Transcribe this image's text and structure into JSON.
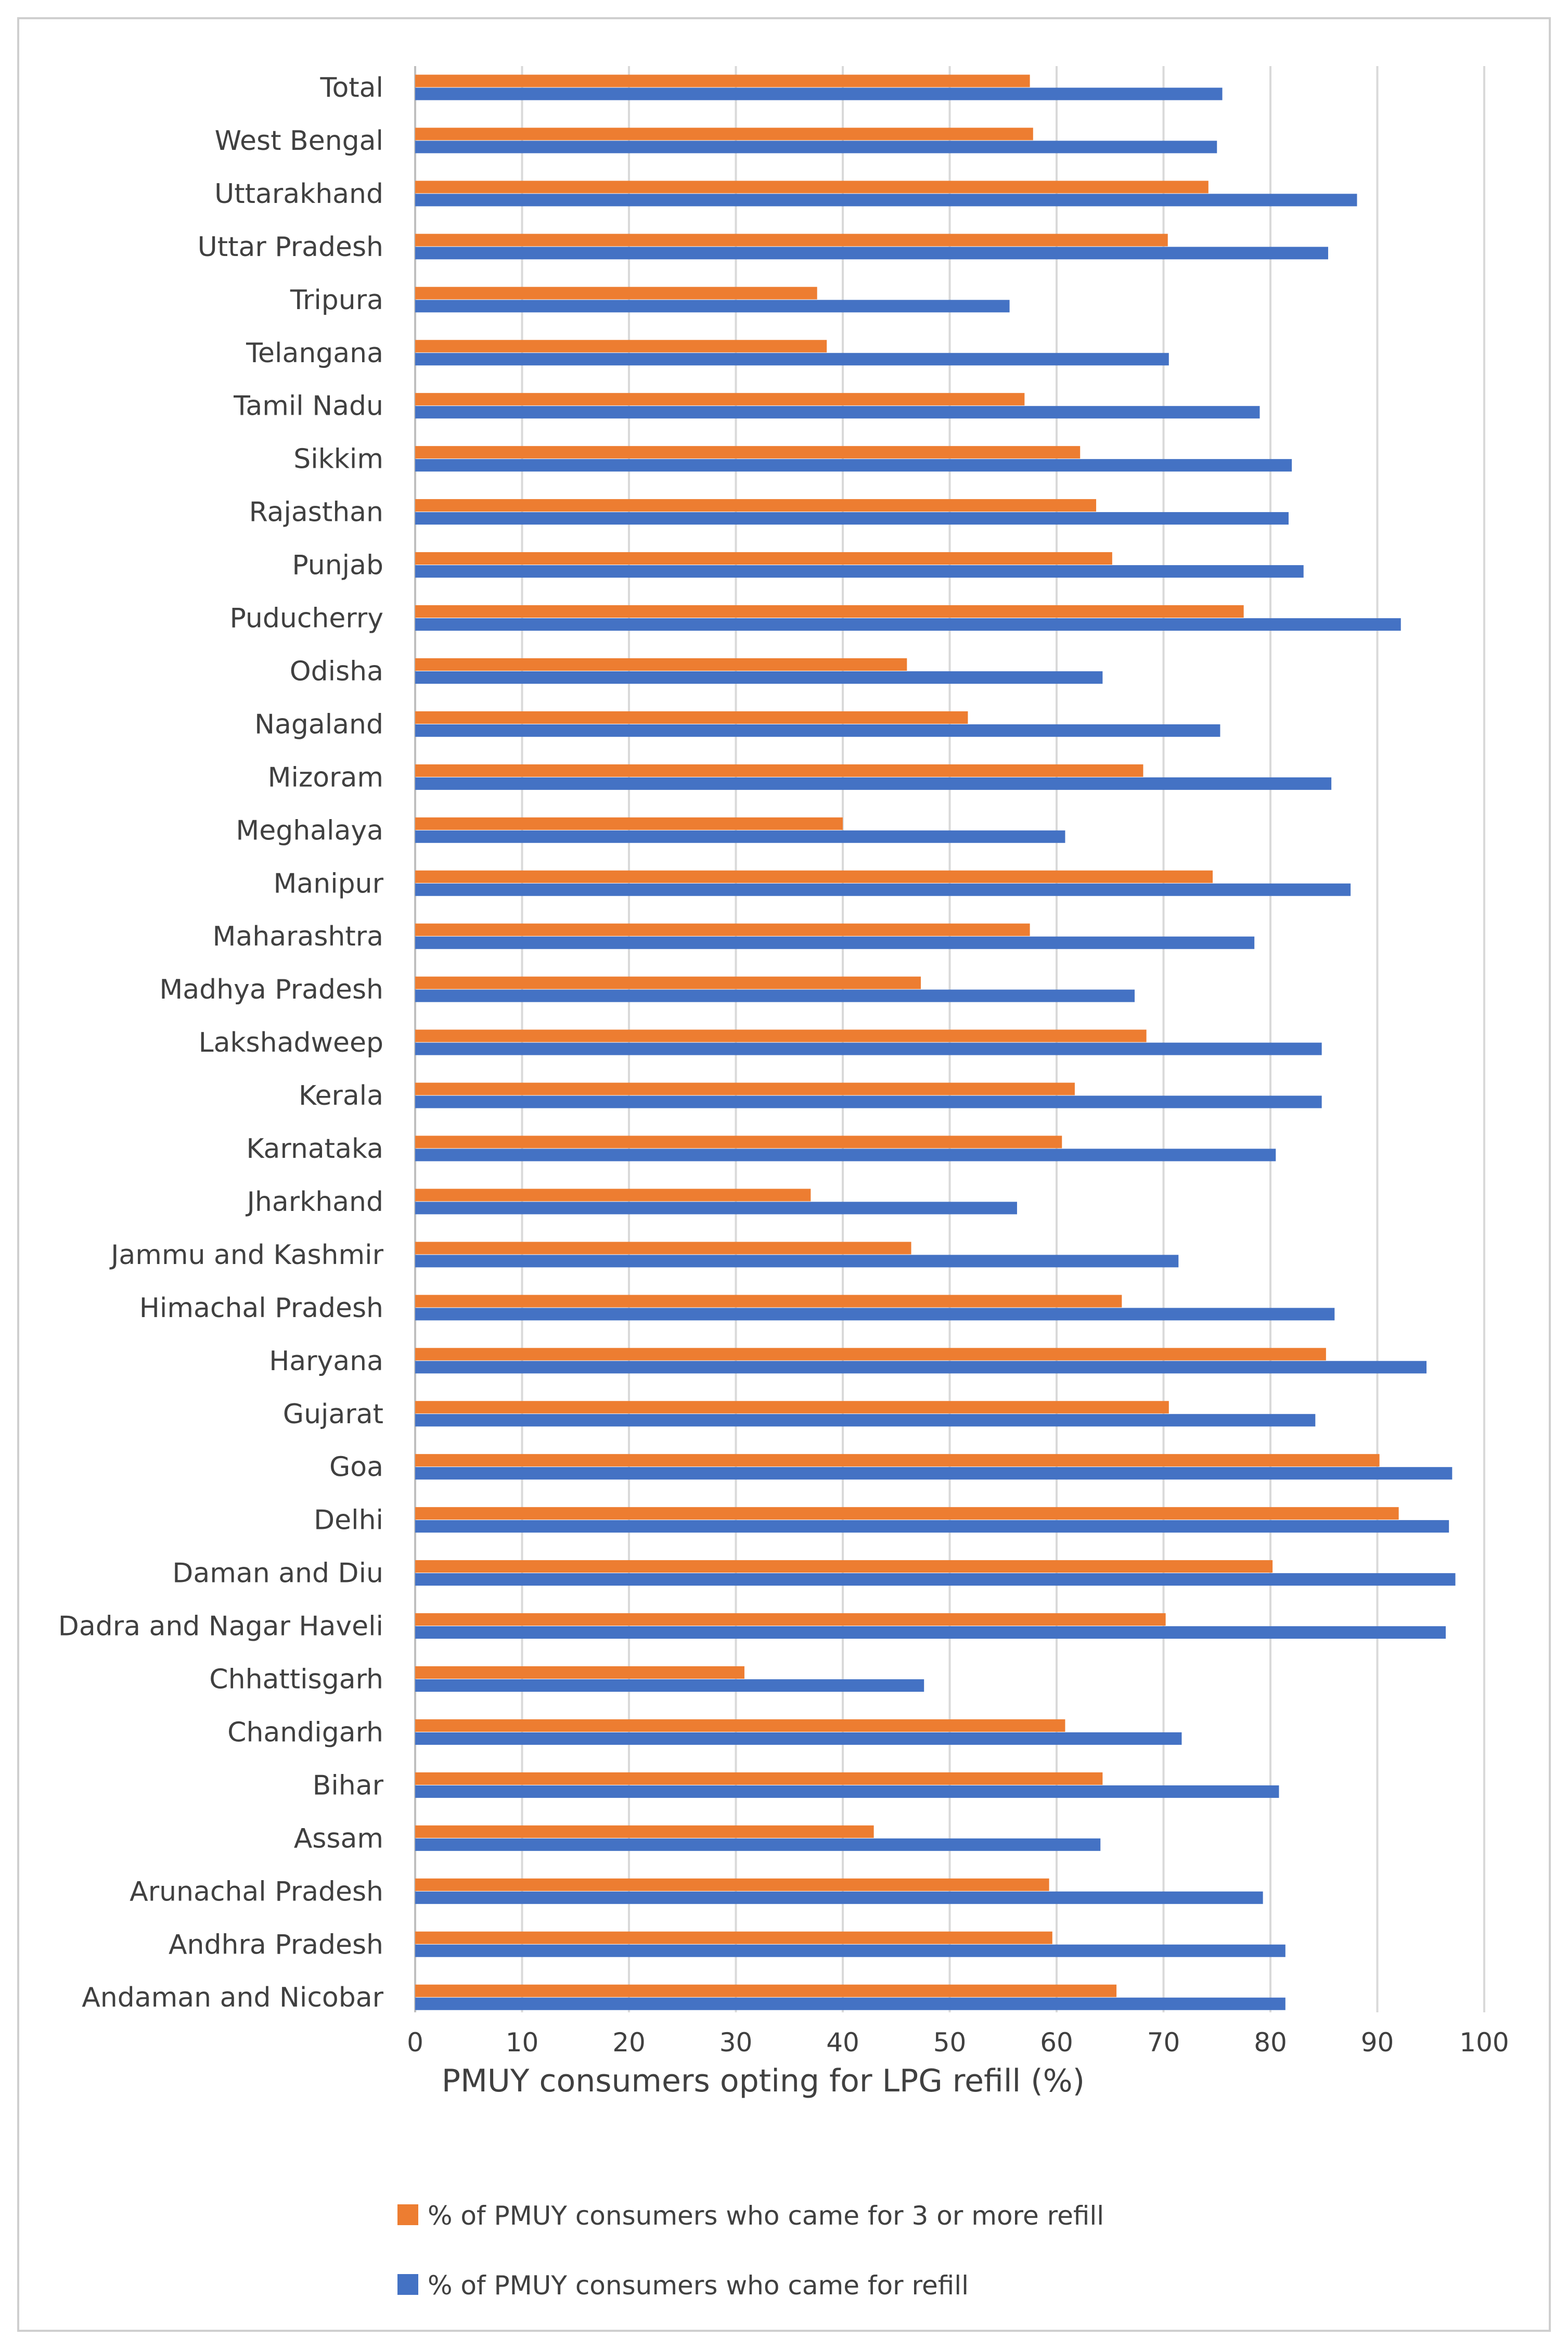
{
  "chart_data": {
    "type": "bar",
    "orientation": "horizontal",
    "title": "",
    "xlabel": "PMUY consumers opting for LPG refill (%)",
    "ylabel": "",
    "xlim": [
      0,
      100
    ],
    "xticks": [
      0,
      10,
      20,
      30,
      40,
      50,
      60,
      70,
      80,
      90,
      100
    ],
    "grid": true,
    "legend_position": "bottom",
    "categories": [
      "Total",
      "West Bengal",
      "Uttarakhand",
      "Uttar Pradesh",
      "Tripura",
      "Telangana",
      "Tamil Nadu",
      "Sikkim",
      "Rajasthan",
      "Punjab",
      "Puducherry",
      "Odisha",
      "Nagaland",
      "Mizoram",
      "Meghalaya",
      "Manipur",
      "Maharashtra",
      "Madhya Pradesh",
      "Lakshadweep",
      "Kerala",
      "Karnataka",
      "Jharkhand",
      "Jammu and Kashmir",
      "Himachal Pradesh",
      "Haryana",
      "Gujarat",
      "Goa",
      "Delhi",
      "Daman and Diu",
      "Dadra and Nagar Haveli",
      "Chhattisgarh",
      "Chandigarh",
      "Bihar",
      "Assam",
      "Arunachal Pradesh",
      "Andhra Pradesh",
      "Andaman and Nicobar"
    ],
    "series": [
      {
        "name": "% of PMUY consumers who came for 3 or more refill",
        "color": "#ED7D31",
        "values": [
          57.5,
          57.8,
          74.2,
          70.4,
          37.6,
          38.5,
          57.0,
          62.2,
          63.7,
          65.2,
          77.5,
          46.0,
          51.7,
          68.1,
          40.0,
          74.6,
          57.5,
          47.3,
          68.4,
          61.7,
          60.5,
          37.0,
          46.4,
          66.1,
          85.2,
          70.5,
          90.2,
          92.0,
          80.2,
          70.2,
          30.8,
          60.8,
          64.3,
          42.9,
          59.3,
          59.6,
          65.6
        ]
      },
      {
        "name": "% of PMUY consumers who came for refill",
        "color": "#4472C4",
        "values": [
          75.5,
          75.0,
          88.1,
          85.4,
          55.6,
          70.5,
          79.0,
          82.0,
          81.7,
          83.1,
          92.2,
          64.3,
          75.3,
          85.7,
          60.8,
          87.5,
          78.5,
          67.3,
          84.8,
          84.8,
          80.5,
          56.3,
          71.4,
          86.0,
          94.6,
          84.2,
          97.0,
          96.7,
          97.3,
          96.4,
          47.6,
          71.7,
          80.8,
          64.1,
          79.3,
          81.4,
          81.4
        ]
      }
    ]
  }
}
